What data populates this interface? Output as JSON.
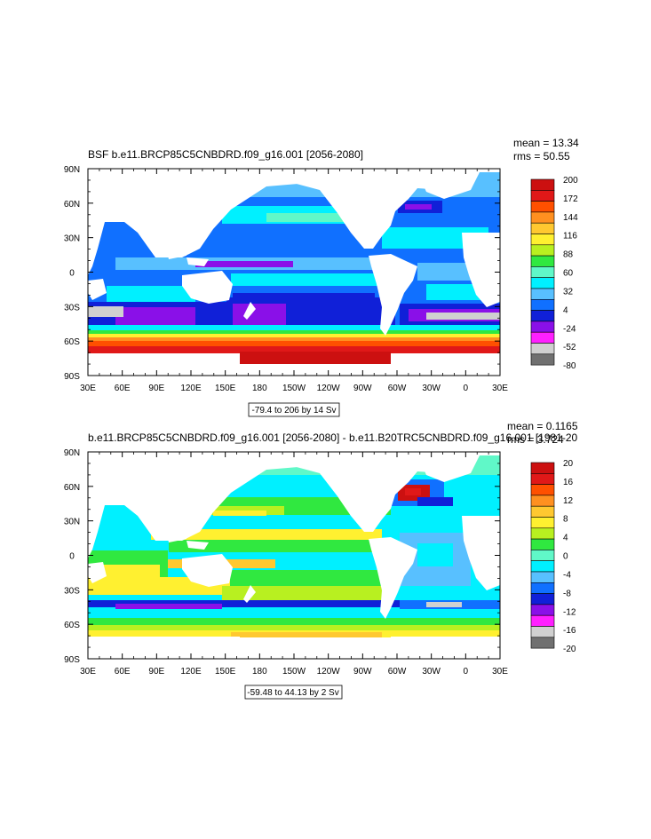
{
  "panels": [
    {
      "title": "BSF b.e11.BRCP85C5CNBDRD.f09_g16.001 [2056-2080]",
      "mean": "mean = 13.34",
      "rms": "rms = 50.55",
      "range_note": "-79.4 to 206 by 14 Sv",
      "colorbar_labels": [
        "200",
        "172",
        "144",
        "116",
        "88",
        "60",
        "32",
        "4",
        "-24",
        "-52",
        "-80"
      ],
      "colors": [
        "#cc1010",
        "#e01818",
        "#ff5000",
        "#ff9020",
        "#ffc830",
        "#fff030",
        "#b8f020",
        "#30e840",
        "#60f8c8",
        "#00f0ff",
        "#58c0ff",
        "#1070ff",
        "#1020d8",
        "#8a10e8",
        "#ff20ff",
        "#d0d0d0",
        "#707070"
      ]
    },
    {
      "title": "b.e11.BRCP85C5CNBDRD.f09_g16.001 [2056-2080] - b.e11.B20TRC5CNBDRD.f09_g16.001 [1981-20",
      "mean": "mean = 0.1165",
      "rms": "rms = 3.724",
      "range_note": "-59.48 to 44.13 by 2 Sv",
      "colorbar_labels": [
        "20",
        "16",
        "12",
        "8",
        "4",
        "0",
        "-4",
        "-8",
        "-12",
        "-16",
        "-20"
      ],
      "colors": [
        "#cc1010",
        "#e01818",
        "#ff5000",
        "#ff9020",
        "#ffc830",
        "#fff030",
        "#b8f020",
        "#30e840",
        "#60f8c8",
        "#00f0ff",
        "#58c0ff",
        "#1070ff",
        "#1020d8",
        "#8a10e8",
        "#ff20ff",
        "#d0d0d0",
        "#707070"
      ]
    }
  ],
  "axes": {
    "x_ticks": [
      "30E",
      "60E",
      "90E",
      "120E",
      "150E",
      "180",
      "150W",
      "120W",
      "90W",
      "60W",
      "30W",
      "0",
      "30E"
    ],
    "y_ticks": [
      "90N",
      "60N",
      "30N",
      "0",
      "30S",
      "60S",
      "90S"
    ]
  }
}
